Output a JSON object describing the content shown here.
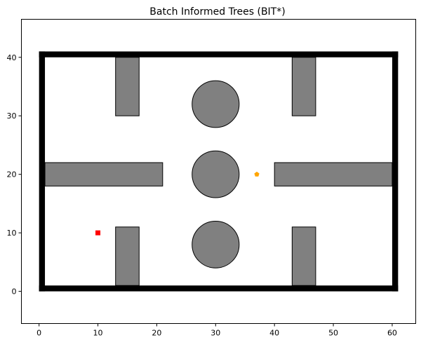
{
  "chart_data": {
    "type": "map",
    "title": "Batch Informed Trees (BIT*)",
    "xlabel": "",
    "ylabel": "",
    "xlim": [
      -3,
      64
    ],
    "ylim": [
      -5.5,
      46.5
    ],
    "xticks": [
      0,
      10,
      20,
      30,
      40,
      50,
      60
    ],
    "yticks": [
      0,
      10,
      20,
      30,
      40
    ],
    "grid": false,
    "colors": {
      "boundary": "#000000",
      "obstacle": "#808080",
      "start": "#ff0000",
      "goal": "#ffa500"
    },
    "boundary": {
      "x0": 0,
      "y0": 0,
      "x1": 61,
      "y1": 41,
      "thickness": 1
    },
    "rect_obstacles": [
      {
        "x": 13,
        "y": 30,
        "w": 4,
        "h": 10
      },
      {
        "x": 43,
        "y": 30,
        "w": 4,
        "h": 10
      },
      {
        "x": 1,
        "y": 18,
        "w": 20,
        "h": 4
      },
      {
        "x": 40,
        "y": 18,
        "w": 20,
        "h": 4
      },
      {
        "x": 13,
        "y": 1,
        "w": 4,
        "h": 10
      },
      {
        "x": 43,
        "y": 1,
        "w": 4,
        "h": 10
      }
    ],
    "circle_obstacles": [
      {
        "x": 30,
        "y": 32,
        "r": 4
      },
      {
        "x": 30,
        "y": 20,
        "r": 4
      },
      {
        "x": 30,
        "y": 8,
        "r": 4
      }
    ],
    "start": {
      "x": 10,
      "y": 10
    },
    "goal": {
      "x": 37,
      "y": 20
    }
  }
}
